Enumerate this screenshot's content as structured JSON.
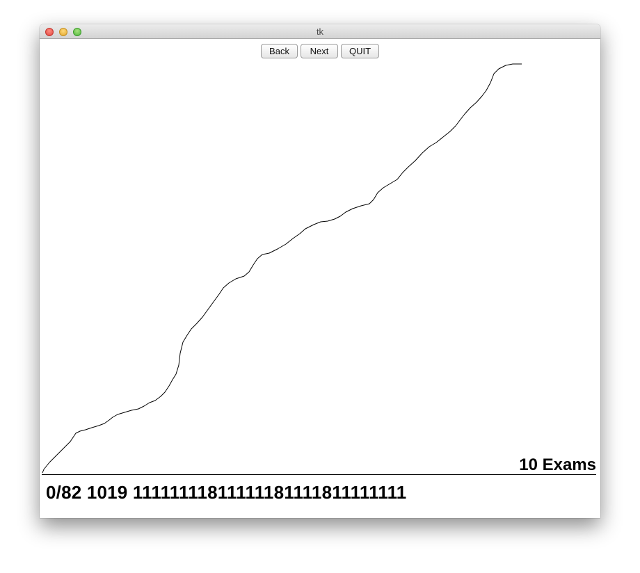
{
  "window": {
    "title": "tk"
  },
  "toolbar": {
    "back_label": "Back",
    "next_label": "Next",
    "quit_label": "QUIT"
  },
  "canvas": {
    "exam_label": "10 Exams",
    "status_text": "0/82 1019 11111111811111181111811111111"
  }
}
